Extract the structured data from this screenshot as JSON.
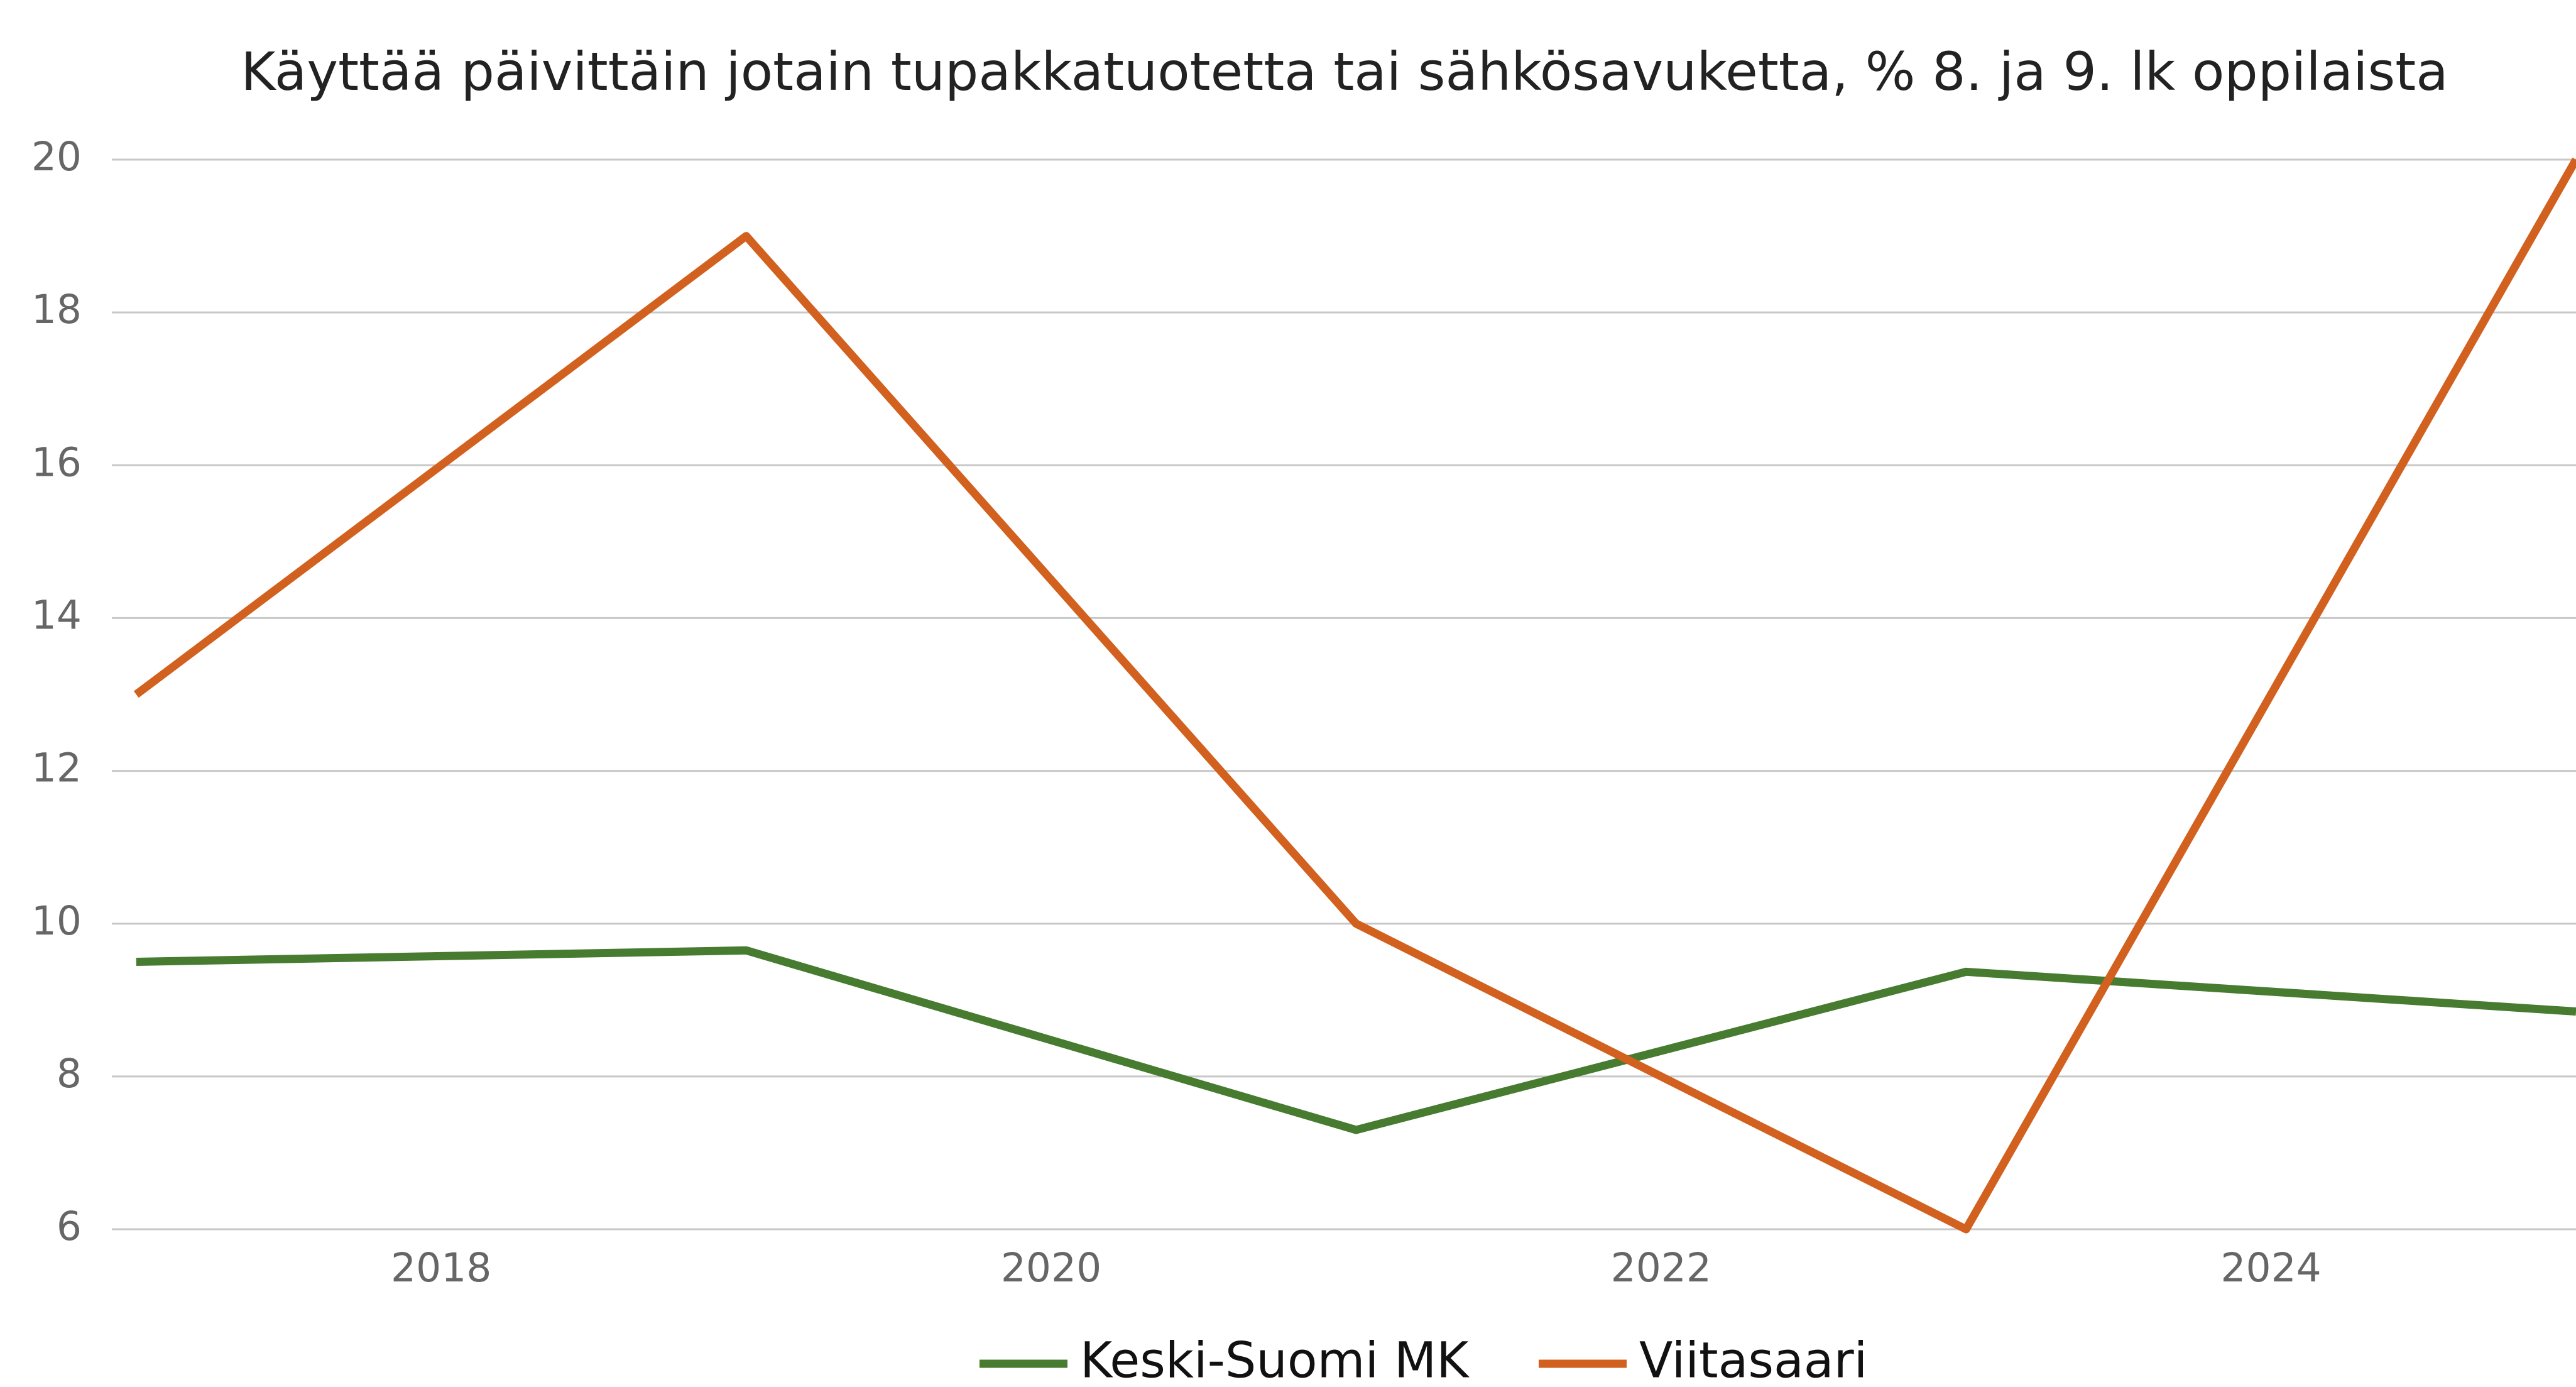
{
  "chart_data": {
    "type": "line",
    "title": "Käyttää päivittäin jotain tupakkatuotetta tai sähkösavuketta, % 8. ja 9. lk oppilaista",
    "x": [
      2017,
      2019,
      2021,
      2023,
      2025
    ],
    "series": [
      {
        "name": "Keski-Suomi MK",
        "color": "#467b30",
        "values": [
          9.5,
          9.65,
          7.3,
          9.37,
          8.85
        ]
      },
      {
        "name": "Viitasaari",
        "color": "#d2601e",
        "values": [
          13,
          19,
          10,
          6,
          20
        ]
      }
    ],
    "xlim": [
      2016.92,
      2025.0
    ],
    "xticks": [
      2018,
      2020,
      2022,
      2024
    ],
    "ylim": [
      6,
      20
    ],
    "yticks": [
      6,
      8,
      10,
      12,
      14,
      16,
      18,
      20
    ],
    "grid": true,
    "legend": "bottom"
  }
}
